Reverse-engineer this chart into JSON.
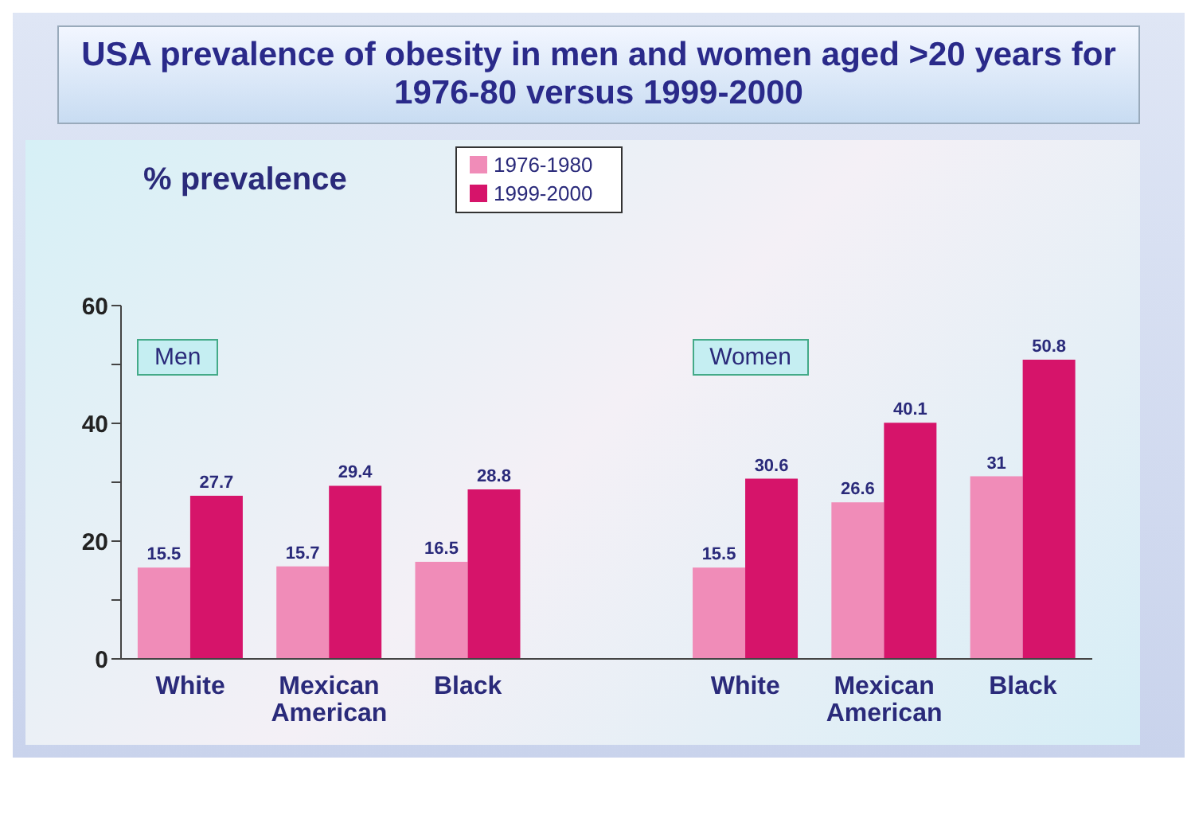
{
  "chart_data": {
    "type": "bar",
    "title": "USA prevalence of obesity in men and women aged >20 years for 1976-80 versus 1999-2000",
    "ylabel": "% prevalence",
    "categories": [
      "White",
      "Mexican American",
      "Black",
      null,
      "White",
      "Mexican American",
      "Black"
    ],
    "series": [
      {
        "name": "1976-1980",
        "color": "#f08cb8",
        "values": [
          15.5,
          15.7,
          16.5,
          null,
          15.5,
          26.6,
          31
        ]
      },
      {
        "name": "1999-2000",
        "color": "#d6146a",
        "values": [
          27.7,
          29.4,
          28.8,
          null,
          30.6,
          40.1,
          50.8
        ]
      }
    ],
    "ylim": [
      0,
      60
    ],
    "yticks": [
      0,
      {
        "value": 10,
        "label": null
      },
      20,
      {
        "value": 30,
        "label": null
      },
      40,
      {
        "value": 50,
        "label": null
      },
      60
    ],
    "annotations": [
      "Men",
      "Women"
    ],
    "data_labels": true,
    "legend": "top",
    "grid": false
  }
}
